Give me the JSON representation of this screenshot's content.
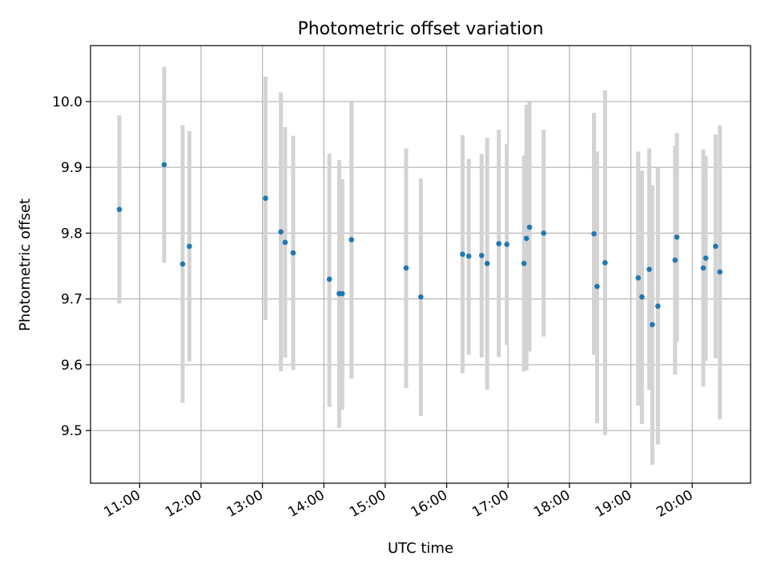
{
  "chart_data": {
    "type": "scatter",
    "title": "Photometric offset variation",
    "xlabel": "UTC time",
    "ylabel": "Photometric offset",
    "x_unit": "hours UTC",
    "xlim": [
      10.2,
      20.95
    ],
    "ylim": [
      9.42,
      10.085
    ],
    "xticks": [
      {
        "value": 11,
        "label": "11:00"
      },
      {
        "value": 12,
        "label": "12:00"
      },
      {
        "value": 13,
        "label": "13:00"
      },
      {
        "value": 14,
        "label": "14:00"
      },
      {
        "value": 15,
        "label": "15:00"
      },
      {
        "value": 16,
        "label": "16:00"
      },
      {
        "value": 17,
        "label": "17:00"
      },
      {
        "value": 18,
        "label": "18:00"
      },
      {
        "value": 19,
        "label": "19:00"
      },
      {
        "value": 20,
        "label": "20:00"
      }
    ],
    "yticks": [
      {
        "value": 9.5,
        "label": "9.5"
      },
      {
        "value": 9.6,
        "label": "9.6"
      },
      {
        "value": 9.7,
        "label": "9.7"
      },
      {
        "value": 9.8,
        "label": "9.8"
      },
      {
        "value": 9.9,
        "label": "9.9"
      },
      {
        "value": 10.0,
        "label": "10.0"
      }
    ],
    "grid": true,
    "marker_color": "#1f77b4",
    "errorbar_color": "#d3d3d3",
    "points": [
      {
        "x": 10.67,
        "y": 9.836,
        "ylow": 9.693,
        "yhigh": 9.979
      },
      {
        "x": 11.4,
        "y": 9.904,
        "ylow": 9.755,
        "yhigh": 10.053
      },
      {
        "x": 11.7,
        "y": 9.753,
        "ylow": 9.542,
        "yhigh": 9.964
      },
      {
        "x": 11.81,
        "y": 9.78,
        "ylow": 9.605,
        "yhigh": 9.955
      },
      {
        "x": 13.05,
        "y": 9.853,
        "ylow": 9.668,
        "yhigh": 10.038
      },
      {
        "x": 13.3,
        "y": 9.802,
        "ylow": 9.59,
        "yhigh": 10.014
      },
      {
        "x": 13.37,
        "y": 9.786,
        "ylow": 9.611,
        "yhigh": 9.961
      },
      {
        "x": 13.5,
        "y": 9.77,
        "ylow": 9.592,
        "yhigh": 9.948
      },
      {
        "x": 14.09,
        "y": 9.73,
        "ylow": 9.536,
        "yhigh": 9.921
      },
      {
        "x": 14.25,
        "y": 9.708,
        "ylow": 9.504,
        "yhigh": 9.911
      },
      {
        "x": 14.3,
        "y": 9.708,
        "ylow": 9.532,
        "yhigh": 9.882
      },
      {
        "x": 14.45,
        "y": 9.79,
        "ylow": 9.579,
        "yhigh": 9.999
      },
      {
        "x": 15.34,
        "y": 9.747,
        "ylow": 9.565,
        "yhigh": 9.929
      },
      {
        "x": 15.58,
        "y": 9.703,
        "ylow": 9.522,
        "yhigh": 9.883
      },
      {
        "x": 16.26,
        "y": 9.768,
        "ylow": 9.587,
        "yhigh": 9.949
      },
      {
        "x": 16.36,
        "y": 9.765,
        "ylow": 9.615,
        "yhigh": 9.913
      },
      {
        "x": 16.57,
        "y": 9.766,
        "ylow": 9.611,
        "yhigh": 9.92
      },
      {
        "x": 16.66,
        "y": 9.754,
        "ylow": 9.562,
        "yhigh": 9.945
      },
      {
        "x": 16.85,
        "y": 9.784,
        "ylow": 9.612,
        "yhigh": 9.957
      },
      {
        "x": 16.98,
        "y": 9.783,
        "ylow": 9.63,
        "yhigh": 9.935
      },
      {
        "x": 17.26,
        "y": 9.754,
        "ylow": 9.59,
        "yhigh": 9.918
      },
      {
        "x": 17.3,
        "y": 9.792,
        "ylow": 9.592,
        "yhigh": 9.995
      },
      {
        "x": 17.35,
        "y": 9.809,
        "ylow": 9.62,
        "yhigh": 9.999
      },
      {
        "x": 17.58,
        "y": 9.8,
        "ylow": 9.643,
        "yhigh": 9.957
      },
      {
        "x": 18.4,
        "y": 9.799,
        "ylow": 9.615,
        "yhigh": 9.983
      },
      {
        "x": 18.45,
        "y": 9.719,
        "ylow": 9.511,
        "yhigh": 9.924
      },
      {
        "x": 18.58,
        "y": 9.755,
        "ylow": 9.493,
        "yhigh": 10.017
      },
      {
        "x": 19.12,
        "y": 9.732,
        "ylow": 9.538,
        "yhigh": 9.924
      },
      {
        "x": 19.18,
        "y": 9.703,
        "ylow": 9.51,
        "yhigh": 9.895
      },
      {
        "x": 19.3,
        "y": 9.745,
        "ylow": 9.562,
        "yhigh": 9.929
      },
      {
        "x": 19.35,
        "y": 9.661,
        "ylow": 9.448,
        "yhigh": 9.873
      },
      {
        "x": 19.44,
        "y": 9.689,
        "ylow": 9.479,
        "yhigh": 9.899
      },
      {
        "x": 19.72,
        "y": 9.759,
        "ylow": 9.585,
        "yhigh": 9.933
      },
      {
        "x": 19.75,
        "y": 9.794,
        "ylow": 9.635,
        "yhigh": 9.952
      },
      {
        "x": 20.18,
        "y": 9.747,
        "ylow": 9.567,
        "yhigh": 9.927
      },
      {
        "x": 20.22,
        "y": 9.762,
        "ylow": 9.606,
        "yhigh": 9.917
      },
      {
        "x": 20.38,
        "y": 9.78,
        "ylow": 9.61,
        "yhigh": 9.95
      },
      {
        "x": 20.45,
        "y": 9.741,
        "ylow": 9.517,
        "yhigh": 9.964
      }
    ]
  }
}
